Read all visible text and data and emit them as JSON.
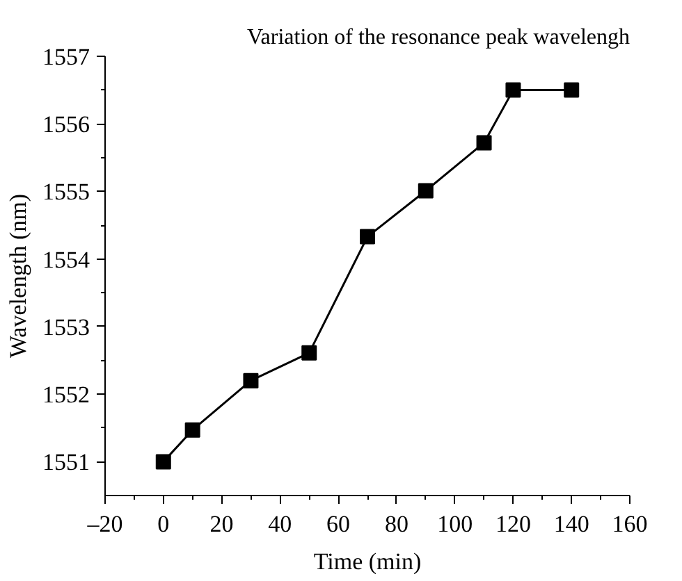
{
  "chart_data": {
    "type": "line",
    "title": "Variation of the resonance peak wavelengh",
    "xlabel": "Time (min)",
    "ylabel": "Wavelength (nm)",
    "x": [
      0,
      10,
      30,
      50,
      70,
      90,
      110,
      120,
      140
    ],
    "series": [
      {
        "color": "#000000",
        "values": [
          1551.0,
          1551.47,
          1552.2,
          1552.61,
          1554.33,
          1555.01,
          1555.72,
          1556.5,
          1556.5
        ]
      }
    ],
    "xlim": [
      -20,
      160
    ],
    "xticks": [
      {
        "value": -20,
        "label": "–20"
      },
      0,
      20,
      40,
      60,
      80,
      100,
      120,
      140,
      160
    ],
    "ylim": [
      1550.5,
      1557
    ],
    "yticks": [
      1551,
      1552,
      1553,
      1554,
      1555,
      1556,
      1557
    ],
    "grid": false,
    "marker": "square",
    "line_style": "solid"
  }
}
